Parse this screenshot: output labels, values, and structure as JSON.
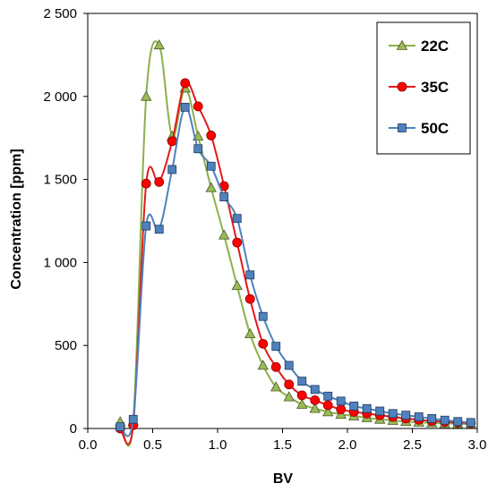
{
  "chart_data": {
    "type": "line",
    "title": "",
    "xlabel": "BV",
    "ylabel": "Concentration [ppm]",
    "xlim": [
      0.0,
      3.0
    ],
    "ylim": [
      0,
      2500
    ],
    "xticks": [
      0.0,
      0.5,
      1.0,
      1.5,
      2.0,
      2.5,
      3.0
    ],
    "xtick_labels": [
      "0.0",
      "0.5",
      "1.0",
      "1.5",
      "2.0",
      "2.5",
      "3.0"
    ],
    "yticks": [
      0,
      500,
      1000,
      1500,
      2000,
      2500
    ],
    "ytick_labels": [
      "0",
      "500",
      "1 000",
      "1 500",
      "2 000",
      "2 500"
    ],
    "grid": false,
    "legend_position": "top-right",
    "series": [
      {
        "name": "22C",
        "color": "#8DB04A",
        "marker": "triangle",
        "marker_fill": "#9BBB59",
        "x": [
          0.25,
          0.35,
          0.45,
          0.55,
          0.65,
          0.75,
          0.85,
          0.95,
          1.05,
          1.15,
          1.25,
          1.35,
          1.45,
          1.55,
          1.65,
          1.75,
          1.85,
          1.95,
          2.05,
          2.15,
          2.25,
          2.35,
          2.45,
          2.55,
          2.65,
          2.75,
          2.85,
          2.95
        ],
        "values": [
          40,
          40,
          2000,
          2310,
          1760,
          2050,
          1760,
          1450,
          1165,
          860,
          570,
          380,
          250,
          190,
          145,
          120,
          100,
          85,
          75,
          65,
          55,
          48,
          42,
          37,
          33,
          30,
          28,
          27
        ]
      },
      {
        "name": "35C",
        "color": "#E31A1C",
        "marker": "circle",
        "marker_fill": "#FF0000",
        "x": [
          0.25,
          0.35,
          0.45,
          0.55,
          0.65,
          0.75,
          0.85,
          0.95,
          1.05,
          1.15,
          1.25,
          1.35,
          1.45,
          1.55,
          1.65,
          1.75,
          1.85,
          1.95,
          2.05,
          2.15,
          2.25,
          2.35,
          2.45,
          2.55,
          2.65,
          2.75,
          2.85,
          2.95
        ],
        "values": [
          0,
          20,
          1475,
          1485,
          1730,
          2080,
          1940,
          1765,
          1460,
          1120,
          780,
          510,
          370,
          265,
          200,
          170,
          140,
          115,
          100,
          90,
          80,
          70,
          60,
          52,
          45,
          40,
          36,
          33
        ]
      },
      {
        "name": "50C",
        "color": "#4F81BD",
        "marker": "square",
        "marker_fill": "#4F81BD",
        "x": [
          0.25,
          0.35,
          0.45,
          0.55,
          0.65,
          0.75,
          0.85,
          0.95,
          1.05,
          1.15,
          1.25,
          1.35,
          1.45,
          1.55,
          1.65,
          1.75,
          1.85,
          1.95,
          2.05,
          2.15,
          2.25,
          2.35,
          2.45,
          2.55,
          2.65,
          2.75,
          2.85,
          2.95
        ],
        "values": [
          10,
          55,
          1220,
          1200,
          1560,
          1935,
          1685,
          1580,
          1395,
          1265,
          925,
          675,
          495,
          380,
          285,
          235,
          195,
          165,
          135,
          120,
          105,
          90,
          80,
          70,
          60,
          50,
          42,
          36
        ]
      }
    ]
  }
}
